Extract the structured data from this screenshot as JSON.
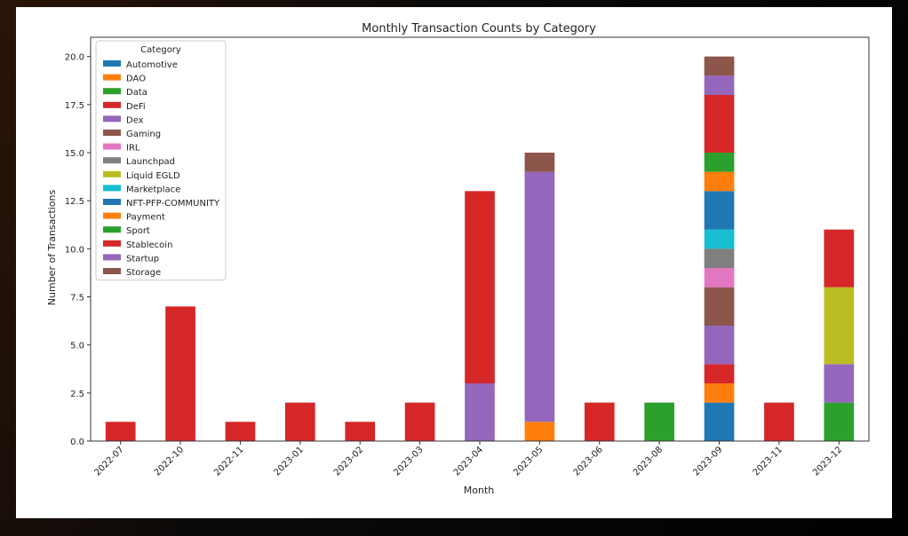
{
  "chart_data": {
    "type": "bar",
    "stacked": true,
    "title": "Monthly Transaction Counts by Category",
    "xlabel": "Month",
    "ylabel": "Number of Transactions",
    "ylim": [
      0,
      21
    ],
    "yticks": [
      "0.0",
      "2.5",
      "5.0",
      "7.5",
      "10.0",
      "12.5",
      "15.0",
      "17.5",
      "20.0"
    ],
    "grid": false,
    "legend_title": "Category",
    "legend_position": "upper-left",
    "categories": [
      "2022-07",
      "2022-10",
      "2022-11",
      "2023-01",
      "2023-02",
      "2023-03",
      "2023-04",
      "2023-05",
      "2023-06",
      "2023-08",
      "2023-09",
      "2023-11",
      "2023-12"
    ],
    "series": [
      {
        "name": "Automotive",
        "color": "#1f77b4",
        "values": [
          0,
          0,
          0,
          0,
          0,
          0,
          0,
          0,
          0,
          0,
          2,
          0,
          0
        ]
      },
      {
        "name": "DAO",
        "color": "#ff7f0e",
        "values": [
          0,
          0,
          0,
          0,
          0,
          0,
          0,
          1,
          0,
          0,
          1,
          0,
          0
        ]
      },
      {
        "name": "Data",
        "color": "#2ca02c",
        "values": [
          0,
          0,
          0,
          0,
          0,
          0,
          0,
          0,
          0,
          2,
          0,
          0,
          2
        ]
      },
      {
        "name": "DeFi",
        "color": "#d62728",
        "values": [
          1,
          7,
          1,
          2,
          1,
          2,
          0,
          0,
          2,
          0,
          1,
          2,
          0
        ]
      },
      {
        "name": "Dex",
        "color": "#9467bd",
        "values": [
          0,
          0,
          0,
          0,
          0,
          0,
          3,
          11,
          0,
          0,
          2,
          0,
          2
        ]
      },
      {
        "name": "Gaming",
        "color": "#8c564b",
        "values": [
          0,
          0,
          0,
          0,
          0,
          0,
          0,
          0,
          0,
          0,
          2,
          0,
          0
        ]
      },
      {
        "name": "IRL",
        "color": "#e377c2",
        "values": [
          0,
          0,
          0,
          0,
          0,
          0,
          0,
          0,
          0,
          0,
          1,
          0,
          0
        ]
      },
      {
        "name": "Launchpad",
        "color": "#7f7f7f",
        "values": [
          0,
          0,
          0,
          0,
          0,
          0,
          0,
          0,
          0,
          0,
          1,
          0,
          0
        ]
      },
      {
        "name": "Liquid EGLD",
        "color": "#bcbd22",
        "values": [
          0,
          0,
          0,
          0,
          0,
          0,
          0,
          0,
          0,
          0,
          0,
          0,
          4
        ]
      },
      {
        "name": "Marketplace",
        "color": "#17becf",
        "values": [
          0,
          0,
          0,
          0,
          0,
          0,
          0,
          0,
          0,
          0,
          1,
          0,
          0
        ]
      },
      {
        "name": "NFT-PFP-COMMUNITY",
        "color": "#1f77b4",
        "values": [
          0,
          0,
          0,
          0,
          0,
          0,
          0,
          0,
          0,
          0,
          2,
          0,
          0
        ]
      },
      {
        "name": "Payment",
        "color": "#ff7f0e",
        "values": [
          0,
          0,
          0,
          0,
          0,
          0,
          0,
          0,
          0,
          0,
          1,
          0,
          0
        ]
      },
      {
        "name": "Sport",
        "color": "#2ca02c",
        "values": [
          0,
          0,
          0,
          0,
          0,
          0,
          0,
          0,
          0,
          0,
          1,
          0,
          0
        ]
      },
      {
        "name": "Stablecoin",
        "color": "#d62728",
        "values": [
          0,
          0,
          0,
          0,
          0,
          0,
          10,
          0,
          0,
          0,
          3,
          0,
          3
        ]
      },
      {
        "name": "Startup",
        "color": "#9467bd",
        "values": [
          0,
          0,
          0,
          0,
          0,
          0,
          0,
          2,
          0,
          0,
          1,
          0,
          0
        ]
      },
      {
        "name": "Storage",
        "color": "#8c564b",
        "values": [
          0,
          0,
          0,
          0,
          0,
          0,
          0,
          1,
          0,
          0,
          1,
          0,
          0
        ]
      }
    ]
  }
}
